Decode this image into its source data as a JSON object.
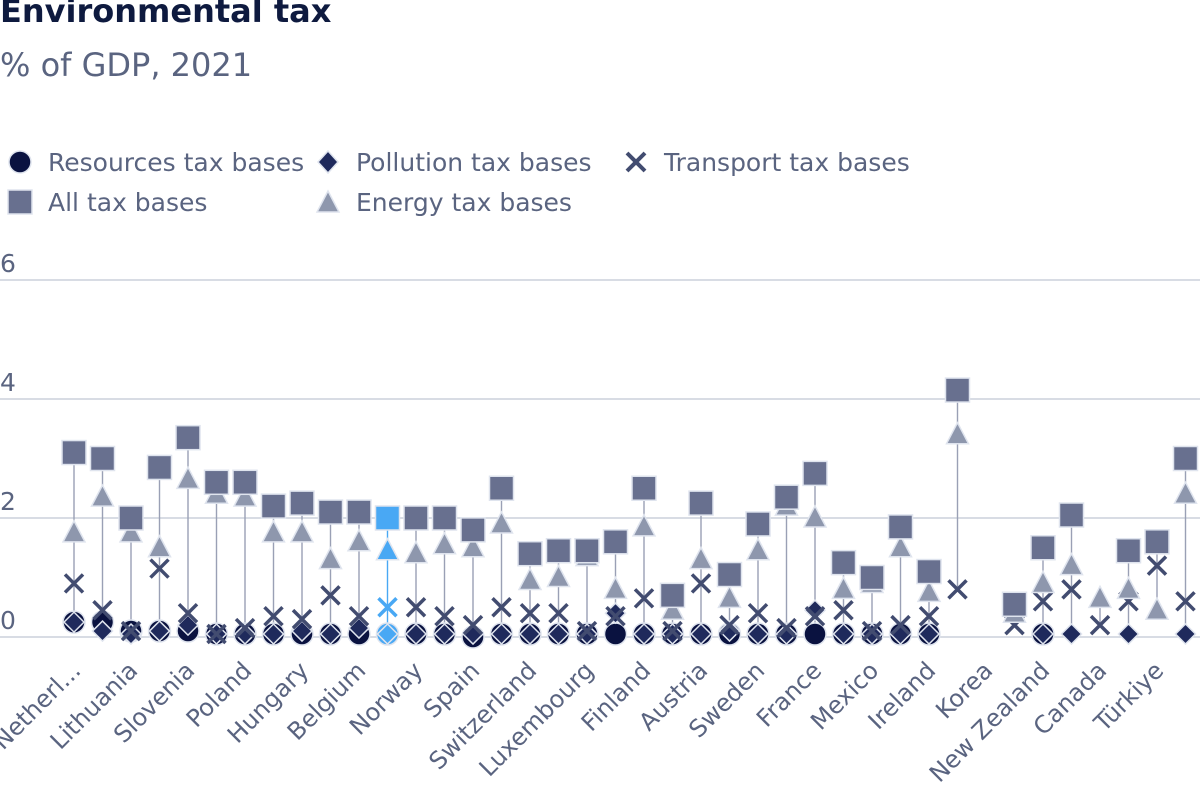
{
  "title": "Environmental tax",
  "subtitle": "% of GDP, 2021",
  "legend": {
    "resources": "Resources tax bases",
    "pollution": "Pollution tax bases",
    "transport": "Transport tax bases",
    "all": "All tax bases",
    "energy": "Energy tax bases"
  },
  "colors": {
    "resources": "#0a1240",
    "pollution": "#1f2a5c",
    "transport": "#424c70",
    "all": "#68708f",
    "energy": "#8e97ad",
    "highlight": "#49a8f4",
    "stem": "#9aa0b5",
    "grid": "#c0c8d4"
  },
  "chart_data": {
    "type": "scatter",
    "title": "Environmental tax",
    "subtitle": "% of GDP, 2021",
    "xlabel": "",
    "ylabel": "",
    "ylim": [
      0,
      6
    ],
    "yticks": [
      0,
      2,
      4,
      6
    ],
    "highlight_index": 11,
    "categories": [
      "Netherl...",
      "",
      "Lithuania",
      "",
      "Slovenia",
      "",
      "Poland",
      "",
      "Hungary",
      "",
      "Belgium",
      "",
      "Norway",
      "",
      "Spain",
      "",
      "Switzerland",
      "",
      "Luxembourg",
      "",
      "Finland",
      "",
      "Austria",
      "",
      "Sweden",
      "",
      "France",
      "",
      "Mexico",
      "",
      "Ireland",
      "",
      "Korea",
      "",
      "New Zealand",
      "",
      "Canada",
      "",
      "Türkiye",
      ""
    ],
    "series": [
      {
        "name": "All tax bases",
        "values": [
          3.1,
          3.0,
          2.0,
          2.85,
          3.35,
          2.6,
          2.6,
          2.2,
          2.25,
          2.1,
          2.1,
          2.0,
          2.0,
          2.0,
          1.8,
          2.5,
          1.4,
          1.45,
          1.45,
          1.6,
          2.5,
          0.7,
          2.25,
          1.05,
          1.9,
          2.35,
          2.75,
          1.25,
          1.0,
          1.85,
          1.1,
          4.15,
          null,
          0.55,
          1.5,
          2.05,
          null,
          1.45,
          1.6,
          3.0
        ]
      },
      {
        "name": "Energy tax bases",
        "values": [
          1.75,
          2.35,
          1.75,
          1.5,
          2.65,
          2.4,
          2.35,
          1.75,
          1.75,
          1.3,
          1.6,
          1.45,
          1.4,
          1.55,
          1.5,
          1.9,
          0.95,
          1.0,
          1.35,
          0.8,
          1.85,
          0.45,
          1.3,
          0.65,
          1.45,
          2.2,
          2.0,
          0.8,
          0.9,
          1.5,
          0.75,
          3.4,
          null,
          0.4,
          0.9,
          1.2,
          0.65,
          0.8,
          0.45,
          2.4
        ]
      },
      {
        "name": "Transport tax bases",
        "values": [
          0.9,
          0.45,
          0.1,
          1.15,
          0.4,
          0.05,
          0.15,
          0.35,
          0.3,
          0.7,
          0.35,
          0.5,
          0.5,
          0.35,
          0.2,
          0.5,
          0.4,
          0.4,
          0.1,
          0.35,
          0.65,
          0.1,
          0.9,
          0.2,
          0.4,
          0.15,
          0.35,
          0.45,
          0.1,
          0.2,
          0.35,
          0.8,
          null,
          0.2,
          0.6,
          0.8,
          0.2,
          0.6,
          1.2,
          0.6
        ]
      },
      {
        "name": "Pollution tax bases",
        "values": [
          0.25,
          0.1,
          0.05,
          0.1,
          0.2,
          0.05,
          0.05,
          0.05,
          0.1,
          0.05,
          0.15,
          0.05,
          0.05,
          0.05,
          0.05,
          0.05,
          0.05,
          0.05,
          0.05,
          0.4,
          0.05,
          0.05,
          0.05,
          0.1,
          0.05,
          0.05,
          0.45,
          0.05,
          0.05,
          0.05,
          0.05,
          null,
          null,
          null,
          0.05,
          0.05,
          null,
          0.05,
          null,
          0.05
        ]
      },
      {
        "name": "Resources tax bases",
        "values": [
          0.25,
          0.25,
          0.1,
          0.1,
          0.1,
          0.05,
          0.05,
          0.05,
          0.05,
          0.05,
          0.05,
          0.05,
          0.05,
          0.05,
          0.0,
          0.05,
          0.05,
          0.05,
          0.05,
          0.05,
          0.05,
          0.05,
          0.05,
          0.05,
          0.05,
          0.05,
          0.05,
          0.05,
          0.05,
          0.05,
          0.05,
          null,
          null,
          null,
          0.05,
          null,
          null,
          null,
          null,
          null
        ]
      }
    ]
  }
}
